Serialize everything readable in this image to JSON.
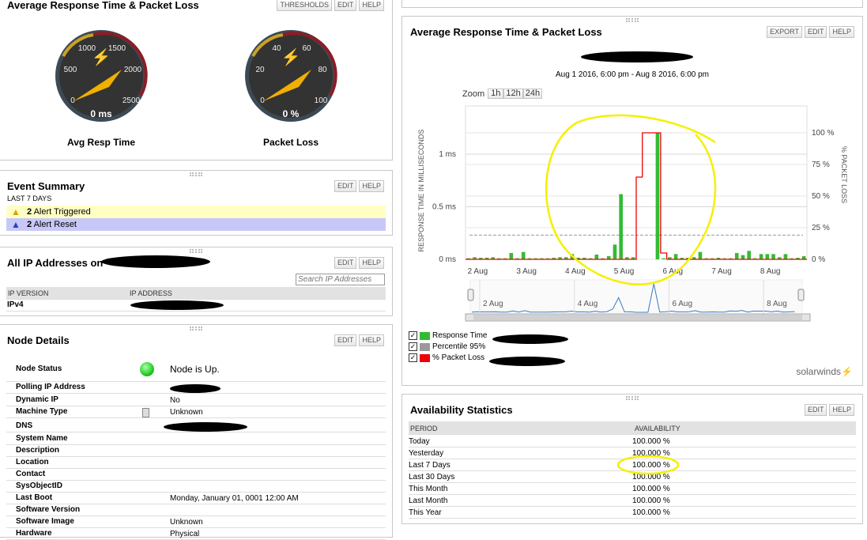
{
  "gauges_panel": {
    "title": "Average Response Time & Packet Loss",
    "buttons": [
      "THRESHOLDS",
      "EDIT",
      "HELP"
    ],
    "gauges": [
      {
        "label": "Avg Resp Time",
        "value_text": "0 ms",
        "value": 0,
        "ticks": [
          "0",
          "500",
          "1000",
          "1500",
          "2000",
          "2500"
        ]
      },
      {
        "label": "Packet Loss",
        "value_text": "0 %",
        "value": 0,
        "ticks": [
          "0",
          "20",
          "40",
          "60",
          "80",
          "100"
        ]
      }
    ]
  },
  "event_summary": {
    "title": "Event Summary",
    "subtitle": "LAST 7 DAYS",
    "buttons": [
      "EDIT",
      "HELP"
    ],
    "items": [
      {
        "count": "2",
        "label": "Alert Triggered",
        "icon": "warning-triangle-icon",
        "bg": "#ffffc4"
      },
      {
        "count": "2",
        "label": "Alert Reset",
        "icon": "reset-triangle-icon",
        "bg": "#c8c8f8"
      }
    ]
  },
  "ip_panel": {
    "title": "All IP Addresses on",
    "buttons": [
      "EDIT",
      "HELP"
    ],
    "search_placeholder": "Search IP Addresses",
    "columns": [
      "IP VERSION",
      "IP ADDRESS"
    ],
    "rows": [
      {
        "version": "IPv4"
      }
    ]
  },
  "node_details": {
    "title": "Node Details",
    "buttons": [
      "EDIT",
      "HELP"
    ],
    "status_color": "#22cc22",
    "rows": [
      {
        "label": "Node Status",
        "value": "Node is Up."
      },
      {
        "label": "Polling IP Address",
        "value": ""
      },
      {
        "label": "Dynamic IP",
        "value": "No"
      },
      {
        "label": "Machine Type",
        "value": "Unknown"
      },
      {
        "label": "DNS",
        "value": ""
      },
      {
        "label": "System Name",
        "value": ""
      },
      {
        "label": "Description",
        "value": ""
      },
      {
        "label": "Location",
        "value": ""
      },
      {
        "label": "Contact",
        "value": ""
      },
      {
        "label": "SysObjectID",
        "value": ""
      },
      {
        "label": "Last Boot",
        "value": "Monday, January 01, 0001 12:00 AM"
      },
      {
        "label": "Software Version",
        "value": ""
      },
      {
        "label": "Software Image",
        "value": "Unknown"
      },
      {
        "label": "Hardware",
        "value": "Physical"
      }
    ]
  },
  "chart_panel": {
    "title": "Average Response Time & Packet Loss",
    "buttons": [
      "EXPORT",
      "EDIT",
      "HELP"
    ],
    "date_range": "Aug 1 2016, 6:00 pm - Aug 8 2016, 6:00 pm",
    "zoom_label": "Zoom",
    "zoom_options": [
      "1h",
      "12h",
      "24h"
    ],
    "brand": "solarwinds",
    "legend": [
      {
        "label": "Response Time",
        "color": "#33bb33",
        "checked": true
      },
      {
        "label": "Percentile 95%",
        "color": "#999999",
        "checked": true
      },
      {
        "label": "% Packet Loss",
        "color": "#ee0000",
        "checked": true
      }
    ]
  },
  "chart_data": {
    "type": "bar",
    "title": "",
    "ylabel": "RESPONSE TIME IN MILLISECONDS",
    "y2label": "% PACKET LOSS",
    "x_start": "2016-08-01 18:00",
    "interval_hours": 3,
    "x_ticks": [
      "2 Aug",
      "3 Aug",
      "4 Aug",
      "5 Aug",
      "6 Aug",
      "7 Aug",
      "8 Aug"
    ],
    "nav_ticks": [
      "2 Aug",
      "4 Aug",
      "6 Aug",
      "8 Aug"
    ],
    "y_ticks": [
      "0 ms",
      "0.5 ms",
      "1 ms"
    ],
    "ylim": [
      0,
      1.35
    ],
    "y2_ticks": [
      "0 %",
      "25 %",
      "50 %",
      "75 %",
      "100 %"
    ],
    "y2lim": [
      0,
      120
    ],
    "percentile95": 0.23,
    "grid": true,
    "series": [
      {
        "name": "Response Time",
        "color": "#33bb33",
        "values": [
          0.01,
          0.02,
          0.015,
          0.015,
          0.02,
          0.01,
          0.01,
          0.06,
          0.01,
          0.07,
          0.01,
          0.01,
          0.01,
          0.01,
          0.015,
          0.02,
          0.02,
          0.05,
          0.015,
          0.015,
          0.01,
          0.045,
          0.01,
          0.03,
          0.14,
          0.62,
          0.02,
          0.02,
          null,
          null,
          null,
          1.2,
          0.01,
          0.02,
          0.05,
          0.015,
          0.015,
          0.02,
          0.07,
          0.01,
          0.01,
          0.015,
          0.01,
          0.01,
          0.06,
          0.04,
          0.08,
          0.01,
          0.05,
          0.05,
          0.05,
          0.02,
          0.05,
          0.01,
          0.015,
          0.03
        ]
      },
      {
        "name": "% Packet Loss",
        "color": "#ee0000",
        "values": [
          0,
          0,
          0,
          0,
          0,
          0,
          0,
          0,
          0,
          0,
          0,
          0,
          0,
          0,
          0,
          0,
          0,
          0,
          0,
          0,
          0,
          0,
          0,
          0,
          0,
          0,
          0,
          0,
          65,
          100,
          100,
          100,
          5,
          0,
          0,
          0,
          0,
          0,
          0,
          0,
          0,
          0,
          0,
          0,
          0,
          0,
          0,
          0,
          0,
          0,
          0,
          0,
          0,
          0,
          0,
          0
        ]
      }
    ]
  },
  "availability": {
    "title": "Availability Statistics",
    "buttons": [
      "EDIT",
      "HELP"
    ],
    "columns": [
      "PERIOD",
      "AVAILABILITY"
    ],
    "rows": [
      {
        "period": "Today",
        "value": "100.000 %"
      },
      {
        "period": "Yesterday",
        "value": "100.000 %"
      },
      {
        "period": "Last 7 Days",
        "value": "100.000 %"
      },
      {
        "period": "Last 30 Days",
        "value": "100.000 %"
      },
      {
        "period": "This Month",
        "value": "100.000 %"
      },
      {
        "period": "Last Month",
        "value": "100.000 %"
      },
      {
        "period": "This Year",
        "value": "100.000 %"
      }
    ]
  }
}
